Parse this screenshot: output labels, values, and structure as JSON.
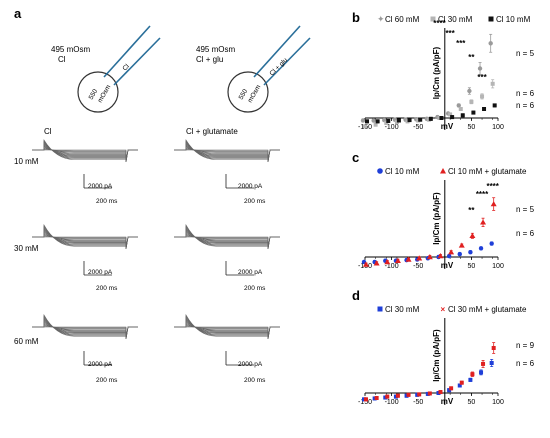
{
  "figure": {
    "panel_a": {
      "label": "a",
      "cell_left": {
        "osm": "495 mOsm",
        "solution": "Cl",
        "pipette_osm": "550",
        "pipette_unit": "mOsm",
        "pipette_label": "Cl"
      },
      "cell_right": {
        "osm": "495 mOsm",
        "solution": "Cl + glu",
        "pipette_osm": "550",
        "pipette_unit": "mOsm",
        "pipette_label": "Cl + glu"
      },
      "col_left": "Cl",
      "col_right": "Cl + glutamate",
      "rows": [
        "10 mM",
        "30 mM",
        "60 mM"
      ],
      "scale_current": "2000 pA",
      "scale_time": "200 ms"
    },
    "panels": [
      {
        "label": "b",
        "ylabel": "Ip/Cm (pA/pF)",
        "xlabel": "mV",
        "legend": [
          "Cl 60 mM",
          "Cl 30 mM",
          "Cl 10 mM"
        ],
        "n_labels": [
          "n = 5",
          "n = 6",
          "n = 6"
        ],
        "stars": [
          "****",
          "***",
          "***",
          "**",
          "***"
        ]
      },
      {
        "label": "c",
        "ylabel": "Ip/Cm (pA/pF)",
        "xlabel": "mV",
        "legend": [
          "Cl 10 mM",
          "Cl 10 mM + glutamate"
        ],
        "n_labels": [
          "n = 5",
          "n = 6"
        ],
        "stars": [
          "**",
          "****",
          "****"
        ]
      },
      {
        "label": "d",
        "ylabel": "Ip/Cm (pA/pF)",
        "xlabel": "mV",
        "legend": [
          "Cl 30 mM",
          "Cl 30 mM + glutamate"
        ],
        "n_labels": [
          "n = 9",
          "n = 6"
        ],
        "stars": []
      }
    ]
  },
  "chart_data": [
    {
      "type": "scatter",
      "panel": "b",
      "x": [
        -150,
        -130,
        -110,
        -90,
        -70,
        -50,
        -30,
        -10,
        10,
        30,
        50,
        70,
        90
      ],
      "xticks": [
        -150,
        -100,
        -50,
        50,
        100
      ],
      "xlim": [
        -150,
        100
      ],
      "ylim": [
        -12,
        100
      ],
      "series": [
        {
          "name": "Cl 60 mM",
          "color": "#9a9a9a",
          "values": [
            -3,
            -3,
            -2.5,
            -2,
            -2,
            -1.5,
            -1,
            1,
            5,
            14,
            30,
            55,
            83
          ]
        },
        {
          "name": "Cl 30 mM",
          "color": "#b5b5b5",
          "values": [
            -10,
            -8,
            -6,
            -5,
            -4,
            -3,
            -2,
            0,
            4,
            10,
            18,
            24,
            38
          ]
        },
        {
          "name": "Cl 10 mM",
          "color": "#111111",
          "values": [
            -4,
            -4,
            -3.5,
            -3,
            -2.5,
            -2,
            -1,
            0,
            1,
            3,
            6,
            10,
            14
          ]
        }
      ]
    },
    {
      "type": "scatter",
      "panel": "c",
      "x": [
        -150,
        -130,
        -110,
        -90,
        -70,
        -50,
        -30,
        -10,
        10,
        30,
        50,
        70,
        90
      ],
      "xticks": [
        -150,
        -100,
        -50,
        50,
        100
      ],
      "xlim": [
        -150,
        100
      ],
      "ylim": [
        -8,
        80
      ],
      "series": [
        {
          "name": "Cl 10 mM",
          "color": "#1f3fd8",
          "values": [
            -4,
            -4,
            -3,
            -3,
            -2.5,
            -2,
            -1,
            0,
            1,
            3,
            5,
            9,
            14
          ]
        },
        {
          "name": "Cl 10 mM + glutamate",
          "color": "#e02020",
          "values": [
            -6,
            -5,
            -4,
            -3,
            -2,
            -1,
            0,
            1,
            5,
            12,
            22,
            36,
            55
          ]
        }
      ]
    },
    {
      "type": "scatter",
      "panel": "d",
      "x": [
        -150,
        -130,
        -110,
        -90,
        -70,
        -50,
        -30,
        -10,
        10,
        30,
        50,
        70,
        90
      ],
      "xticks": [
        -150,
        -100,
        -50,
        50,
        100
      ],
      "xlim": [
        -150,
        100
      ],
      "ylim": [
        -22,
        80
      ],
      "series": [
        {
          "name": "Cl 30 mM",
          "color": "#1f3fd8",
          "values": [
            -14,
            -12,
            -10,
            -8,
            -6,
            -4,
            -2,
            0,
            3,
            8,
            14,
            22,
            32
          ]
        },
        {
          "name": "Cl 30 mM + glutamate",
          "color": "#e02020",
          "values": [
            -14,
            -11,
            -8,
            -6,
            -4,
            -3,
            -1,
            1,
            5,
            11,
            20,
            31,
            48
          ]
        }
      ]
    }
  ]
}
